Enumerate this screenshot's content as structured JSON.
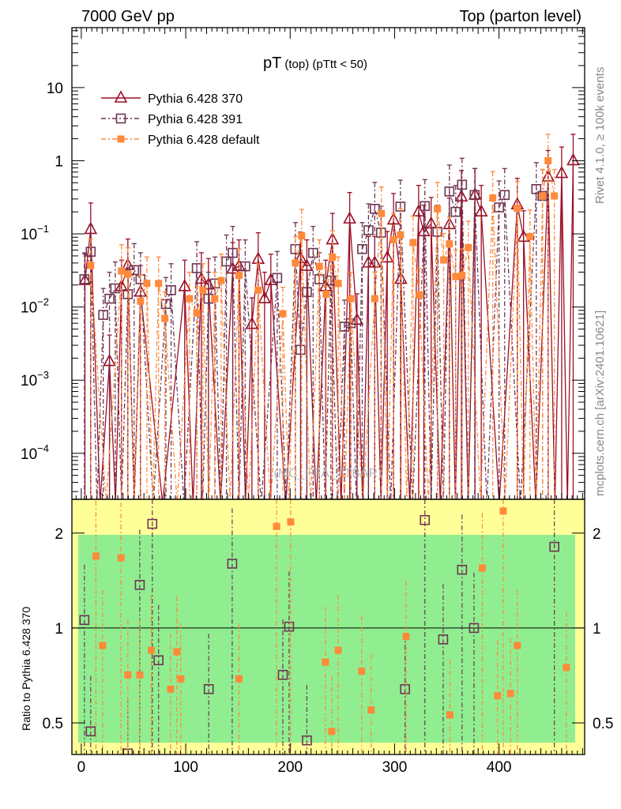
{
  "header": {
    "left": "7000 GeV pp",
    "right": "Top (parton level)",
    "side_top": "Rivet 4.1.0, ≥ 100k events",
    "side_bottom": "mcplots.cern.ch [arXiv:2401.10621]",
    "watermark": "(MC_FBA_TTBAR)"
  },
  "chart_data": {
    "type": "line",
    "title": "pT",
    "title_sub": "(top) (pTtt < 50)",
    "xlabel": "",
    "ylabel_ratio": "Ratio to Pythia 6.428 370",
    "xlim": [
      -9,
      482
    ],
    "ylim": [
      2.35e-05,
      66
    ],
    "yscale": "log",
    "ratio_ylim": [
      0.397,
      2.56
    ],
    "ratio_yscale": "log",
    "x_ticks": [
      0,
      100,
      200,
      300,
      400
    ],
    "x_tick_labels": [
      "0",
      "100",
      "200",
      "300",
      "400"
    ],
    "y_tick_labels": [
      {
        "v": 10,
        "label": "10"
      },
      {
        "v": 1,
        "label": "1"
      },
      {
        "v": 0.1,
        "label": "10",
        "exp": "−1"
      },
      {
        "v": 0.01,
        "label": "10",
        "exp": "−2"
      },
      {
        "v": 0.001,
        "label": "10",
        "exp": "−3"
      },
      {
        "v": 0.0001,
        "label": "10",
        "exp": "−4"
      }
    ],
    "ratio_ticks": [
      {
        "v": 2,
        "label": "2"
      },
      {
        "v": 1,
        "label": "1"
      },
      {
        "v": 0.5,
        "label": "0.5"
      }
    ],
    "legend_placement": "top-left",
    "colors": {
      "p370": "#9b0e26",
      "p391": "#6e3552",
      "default": "#ff8a3a",
      "band_green": "#90ee90",
      "band_yellow": "#ffff99"
    },
    "series": [
      {
        "name": "Pythia 6.428 370",
        "key": "p370",
        "marker": "triangle-open",
        "dash": "",
        "points": [
          [
            3.5,
            0.023
          ],
          [
            9,
            0.115
          ],
          [
            27,
            0.0018
          ],
          [
            38.5,
            0.019
          ],
          [
            44.6,
            0.037
          ],
          [
            56.7,
            0.016
          ],
          [
            99,
            0.019
          ],
          [
            115,
            0.024
          ],
          [
            121.8,
            0.02
          ],
          [
            145,
            0.033
          ],
          [
            151,
            0.036
          ],
          [
            163.4,
            0.0058
          ],
          [
            169.4,
            0.045
          ],
          [
            175.5,
            0.013
          ],
          [
            181.5,
            0.023
          ],
          [
            210,
            0.046
          ],
          [
            216,
            0.036
          ],
          [
            234,
            0.019
          ],
          [
            240.5,
            0.083
          ],
          [
            257,
            0.16
          ],
          [
            264,
            0.0066
          ],
          [
            275,
            0.04
          ],
          [
            281,
            0.04
          ],
          [
            293,
            0.047
          ],
          [
            299,
            0.155
          ],
          [
            306,
            0.024
          ],
          [
            323,
            0.2
          ],
          [
            328,
            0.107
          ],
          [
            335,
            0.137
          ],
          [
            352.5,
            0.134
          ],
          [
            364,
            0.32
          ],
          [
            377,
            0.34
          ],
          [
            383,
            0.2
          ],
          [
            417.5,
            0.25
          ],
          [
            423.5,
            0.09
          ],
          [
            447,
            0.6
          ],
          [
            460,
            0.67
          ],
          [
            471,
            1.0
          ]
        ]
      },
      {
        "name": "Pythia 6.428 391",
        "key": "p391",
        "marker": "square-open",
        "dash": "6,3,2,3",
        "points": [
          [
            3,
            0.024
          ],
          [
            9,
            0.057
          ],
          [
            21,
            0.0078
          ],
          [
            27,
            0.013
          ],
          [
            32.5,
            0.018
          ],
          [
            44.6,
            0.015
          ],
          [
            50.6,
            0.032
          ],
          [
            56.7,
            0.024
          ],
          [
            81,
            0.011
          ],
          [
            86,
            0.017
          ],
          [
            110.6,
            0.034
          ],
          [
            121.8,
            0.013
          ],
          [
            128,
            0.021
          ],
          [
            139,
            0.042
          ],
          [
            145,
            0.055
          ],
          [
            157,
            0.036
          ],
          [
            187.6,
            0.025
          ],
          [
            205,
            0.062
          ],
          [
            210,
            0.0026
          ],
          [
            216,
            0.016
          ],
          [
            222,
            0.055
          ],
          [
            228,
            0.024
          ],
          [
            239,
            0.023
          ],
          [
            252,
            0.0054
          ],
          [
            258,
            0.006
          ],
          [
            269,
            0.062
          ],
          [
            275,
            0.112
          ],
          [
            281,
            0.22
          ],
          [
            287,
            0.104
          ],
          [
            305.6,
            0.236
          ],
          [
            329,
            0.24
          ],
          [
            341,
            0.107
          ],
          [
            352.5,
            0.38
          ],
          [
            358.5,
            0.2
          ],
          [
            364.6,
            0.47
          ],
          [
            376.7,
            0.34
          ],
          [
            400,
            0.23
          ],
          [
            405.4,
            0.34
          ],
          [
            435.7,
            0.41
          ],
          [
            441.7,
            0.33
          ]
        ]
      },
      {
        "name": "Pythia 6.428 default",
        "key": "default",
        "marker": "square-filled",
        "dash": "6,3,2,3",
        "points": [
          [
            9,
            0.037
          ],
          [
            38.5,
            0.031
          ],
          [
            44.6,
            0.028
          ],
          [
            56.7,
            0.012
          ],
          [
            62.8,
            0.021
          ],
          [
            74,
            0.021
          ],
          [
            80,
            0.007
          ],
          [
            103.6,
            0.013
          ],
          [
            110.6,
            0.0083
          ],
          [
            116.5,
            0.017
          ],
          [
            127.8,
            0.013
          ],
          [
            133.9,
            0.023
          ],
          [
            151,
            0.027
          ],
          [
            169.4,
            0.017
          ],
          [
            193,
            0.0081
          ],
          [
            205,
            0.04
          ],
          [
            211,
            0.094
          ],
          [
            228,
            0.036
          ],
          [
            234.5,
            0.015
          ],
          [
            240.5,
            0.048
          ],
          [
            246,
            0.021
          ],
          [
            258,
            0.013
          ],
          [
            281,
            0.013
          ],
          [
            287.4,
            0.19
          ],
          [
            299,
            0.083
          ],
          [
            305.6,
            0.097
          ],
          [
            317.7,
            0.076
          ],
          [
            323.7,
            0.0146
          ],
          [
            341,
            0.22
          ],
          [
            347,
            0.044
          ],
          [
            352.5,
            0.073
          ],
          [
            358.5,
            0.026
          ],
          [
            364.6,
            0.027
          ],
          [
            370.6,
            0.065
          ],
          [
            394,
            0.31
          ],
          [
            417.5,
            0.225
          ],
          [
            429.6,
            0.092
          ],
          [
            441.7,
            0.33
          ],
          [
            447,
            1.0
          ],
          [
            453,
            0.33
          ]
        ]
      }
    ],
    "ratio_series": [
      {
        "key": "p391",
        "marker": "square-open",
        "points": [
          [
            3,
            1.06
          ],
          [
            9,
            0.47
          ],
          [
            44.6,
            0.4
          ],
          [
            56,
            1.37
          ],
          [
            68,
            2.14
          ],
          [
            74,
            0.79
          ],
          [
            122,
            0.64
          ],
          [
            144.5,
            1.6
          ],
          [
            193,
            0.71
          ],
          [
            199,
            1.01
          ],
          [
            216,
            0.44
          ],
          [
            310,
            0.64
          ],
          [
            329,
            2.2
          ],
          [
            346.5,
            0.92
          ],
          [
            364.6,
            1.53
          ],
          [
            376,
            1.0
          ],
          [
            453,
            1.81
          ]
        ]
      },
      {
        "key": "default",
        "marker": "square-filled",
        "points": [
          [
            14,
            1.69
          ],
          [
            20.4,
            0.88
          ],
          [
            38,
            1.67
          ],
          [
            44.6,
            0.71
          ],
          [
            56,
            0.71
          ],
          [
            67,
            0.85
          ],
          [
            85.5,
            0.64
          ],
          [
            91.5,
            0.84
          ],
          [
            95.3,
            0.69
          ],
          [
            151,
            0.69
          ],
          [
            187,
            2.1
          ],
          [
            200.5,
            2.17
          ],
          [
            233.7,
            0.78
          ],
          [
            239.8,
            0.47
          ],
          [
            246,
            0.85
          ],
          [
            268.5,
            0.73
          ],
          [
            277.6,
            0.55
          ],
          [
            311,
            0.94
          ],
          [
            353,
            0.53
          ],
          [
            384,
            1.55
          ],
          [
            398.6,
            0.61
          ],
          [
            404,
            2.35
          ],
          [
            411,
            0.62
          ],
          [
            417.5,
            0.88
          ],
          [
            464.5,
            0.75
          ]
        ]
      }
    ]
  }
}
